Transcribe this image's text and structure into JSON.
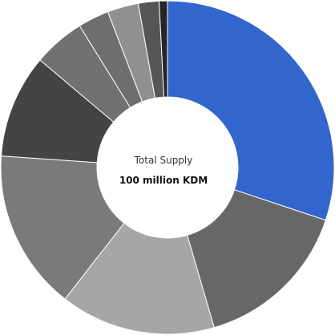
{
  "chart_data": {
    "type": "pie",
    "style": "donut",
    "center_label": {
      "title": "Total Supply",
      "value": "100 million KDM"
    },
    "grid": false,
    "legend": "none",
    "slices": [
      {
        "value": 30.0,
        "color": "#3366cc"
      },
      {
        "value": 15.3,
        "color": "#676767"
      },
      {
        "value": 15.0,
        "color": "#a6a6a6"
      },
      {
        "value": 15.5,
        "color": "#7a7a7a"
      },
      {
        "value": 10.0,
        "color": "#444444"
      },
      {
        "value": 5.0,
        "color": "#717171"
      },
      {
        "value": 3.0,
        "color": "#6e6e6e"
      },
      {
        "value": 3.0,
        "color": "#909090"
      },
      {
        "value": 2.0,
        "color": "#555555"
      },
      {
        "value": 0.8,
        "color": "#262626"
      }
    ]
  }
}
